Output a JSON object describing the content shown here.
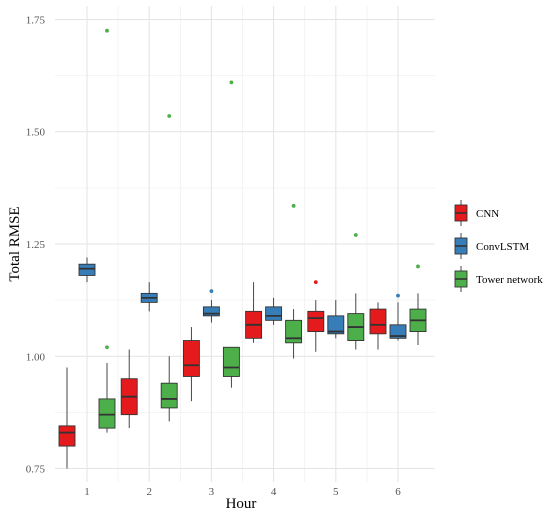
{
  "chart_data": {
    "type": "box",
    "xlabel": "Hour",
    "ylabel": "Total RMSE",
    "categories": [
      "1",
      "2",
      "3",
      "4",
      "5",
      "6"
    ],
    "yticks": [
      0.75,
      1.0,
      1.25,
      1.5,
      1.75
    ],
    "ytick_labels": [
      "0.75",
      "1.00",
      "1.25",
      "1.50",
      "1.75"
    ],
    "ylim": [
      0.72,
      1.78
    ],
    "grid": true,
    "legend_position": "right",
    "series": [
      {
        "name": "CNN",
        "color": "#e41a1c",
        "boxes": [
          {
            "hour": "1",
            "whisker_low": 0.75,
            "q1": 0.8,
            "median": 0.83,
            "q3": 0.845,
            "whisker_high": 0.975,
            "outliers": []
          },
          {
            "hour": "2",
            "whisker_low": 0.84,
            "q1": 0.87,
            "median": 0.91,
            "q3": 0.95,
            "whisker_high": 1.015,
            "outliers": []
          },
          {
            "hour": "3",
            "whisker_low": 0.9,
            "q1": 0.955,
            "median": 0.98,
            "q3": 1.035,
            "whisker_high": 1.065,
            "outliers": []
          },
          {
            "hour": "4",
            "whisker_low": 1.03,
            "q1": 1.04,
            "median": 1.07,
            "q3": 1.1,
            "whisker_high": 1.165,
            "outliers": []
          },
          {
            "hour": "5",
            "whisker_low": 1.01,
            "q1": 1.055,
            "median": 1.085,
            "q3": 1.1,
            "whisker_high": 1.125,
            "outliers": [
              1.165
            ]
          },
          {
            "hour": "6",
            "whisker_low": 1.015,
            "q1": 1.05,
            "median": 1.07,
            "q3": 1.105,
            "whisker_high": 1.12,
            "outliers": []
          }
        ]
      },
      {
        "name": "ConvLSTM",
        "color": "#377eb8",
        "boxes": [
          {
            "hour": "1",
            "whisker_low": 1.165,
            "q1": 1.18,
            "median": 1.195,
            "q3": 1.205,
            "whisker_high": 1.22,
            "outliers": []
          },
          {
            "hour": "2",
            "whisker_low": 1.1,
            "q1": 1.12,
            "median": 1.13,
            "q3": 1.14,
            "whisker_high": 1.165,
            "outliers": []
          },
          {
            "hour": "3",
            "whisker_low": 1.075,
            "q1": 1.09,
            "median": 1.095,
            "q3": 1.11,
            "whisker_high": 1.125,
            "outliers": [
              1.145
            ]
          },
          {
            "hour": "4",
            "whisker_low": 1.07,
            "q1": 1.08,
            "median": 1.09,
            "q3": 1.11,
            "whisker_high": 1.13,
            "outliers": []
          },
          {
            "hour": "5",
            "whisker_low": 1.04,
            "q1": 1.05,
            "median": 1.055,
            "q3": 1.09,
            "whisker_high": 1.125,
            "outliers": []
          },
          {
            "hour": "6",
            "whisker_low": 1.035,
            "q1": 1.04,
            "median": 1.045,
            "q3": 1.07,
            "whisker_high": 1.12,
            "outliers": [
              1.135
            ]
          }
        ]
      },
      {
        "name": "Tower network",
        "color": "#4daf4a",
        "boxes": [
          {
            "hour": "1",
            "whisker_low": 0.83,
            "q1": 0.84,
            "median": 0.87,
            "q3": 0.905,
            "whisker_high": 0.985,
            "outliers": [
              1.725,
              1.02
            ]
          },
          {
            "hour": "2",
            "whisker_low": 0.855,
            "q1": 0.885,
            "median": 0.905,
            "q3": 0.94,
            "whisker_high": 1.0,
            "outliers": [
              1.535
            ]
          },
          {
            "hour": "3",
            "whisker_low": 0.93,
            "q1": 0.955,
            "median": 0.975,
            "q3": 1.02,
            "whisker_high": 1.02,
            "outliers": [
              1.61
            ]
          },
          {
            "hour": "4",
            "whisker_low": 0.995,
            "q1": 1.03,
            "median": 1.04,
            "q3": 1.08,
            "whisker_high": 1.105,
            "outliers": [
              1.335
            ]
          },
          {
            "hour": "5",
            "whisker_low": 1.015,
            "q1": 1.035,
            "median": 1.065,
            "q3": 1.095,
            "whisker_high": 1.14,
            "outliers": [
              1.27
            ]
          },
          {
            "hour": "6",
            "whisker_low": 1.025,
            "q1": 1.055,
            "median": 1.08,
            "q3": 1.105,
            "whisker_high": 1.14,
            "outliers": [
              1.2
            ]
          }
        ]
      }
    ]
  }
}
